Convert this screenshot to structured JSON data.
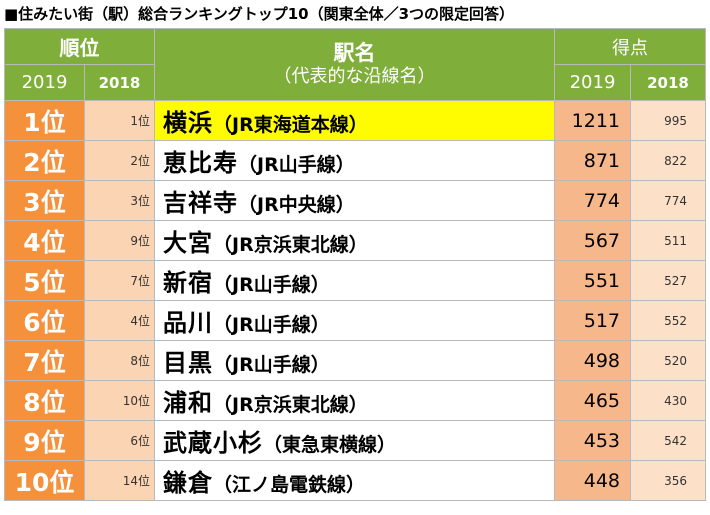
{
  "title": "■住みたい街（駅）総合ランキングトップ10（関東全体／3つの限定回答）",
  "header": {
    "rank": "順位",
    "station_name": "駅名",
    "station_name_sub": "（代表的な沿線名）",
    "score": "得点",
    "year_current": "2019",
    "year_previous": "2018"
  },
  "rows": [
    {
      "rank_2019": "1位",
      "rank_2018": "1位",
      "station": "横浜",
      "line": "（JR東海道本線）",
      "score_2019": "1211",
      "score_2018": "995"
    },
    {
      "rank_2019": "2位",
      "rank_2018": "2位",
      "station": "恵比寿",
      "line": "（JR山手線）",
      "score_2019": "871",
      "score_2018": "822"
    },
    {
      "rank_2019": "3位",
      "rank_2018": "3位",
      "station": "吉祥寺",
      "line": "（JR中央線）",
      "score_2019": "774",
      "score_2018": "774"
    },
    {
      "rank_2019": "4位",
      "rank_2018": "9位",
      "station": "大宮",
      "line": "（JR京浜東北線）",
      "score_2019": "567",
      "score_2018": "511"
    },
    {
      "rank_2019": "5位",
      "rank_2018": "7位",
      "station": "新宿",
      "line": "（JR山手線）",
      "score_2019": "551",
      "score_2018": "527"
    },
    {
      "rank_2019": "6位",
      "rank_2018": "4位",
      "station": "品川",
      "line": "（JR山手線）",
      "score_2019": "517",
      "score_2018": "552"
    },
    {
      "rank_2019": "7位",
      "rank_2018": "8位",
      "station": "目黒",
      "line": "（JR山手線）",
      "score_2019": "498",
      "score_2018": "520"
    },
    {
      "rank_2019": "8位",
      "rank_2018": "10位",
      "station": "浦和",
      "line": "（JR京浜東北線）",
      "score_2019": "465",
      "score_2018": "430"
    },
    {
      "rank_2019": "9位",
      "rank_2018": "6位",
      "station": "武蔵小杉",
      "line": "（東急東横線）",
      "score_2019": "453",
      "score_2018": "542"
    },
    {
      "rank_2019": "10位",
      "rank_2018": "14位",
      "station": "鎌倉",
      "line": "（江ノ島電鉄線）",
      "score_2019": "448",
      "score_2018": "356"
    }
  ],
  "colors": {
    "header_green": "#7fae3a",
    "rank_orange": "#f5913a",
    "rank_prev_bg": "#fbd5b3",
    "score_bg": "#f6b78b",
    "score_prev_bg": "#fde0c8",
    "highlight_yellow": "#fffb00"
  }
}
